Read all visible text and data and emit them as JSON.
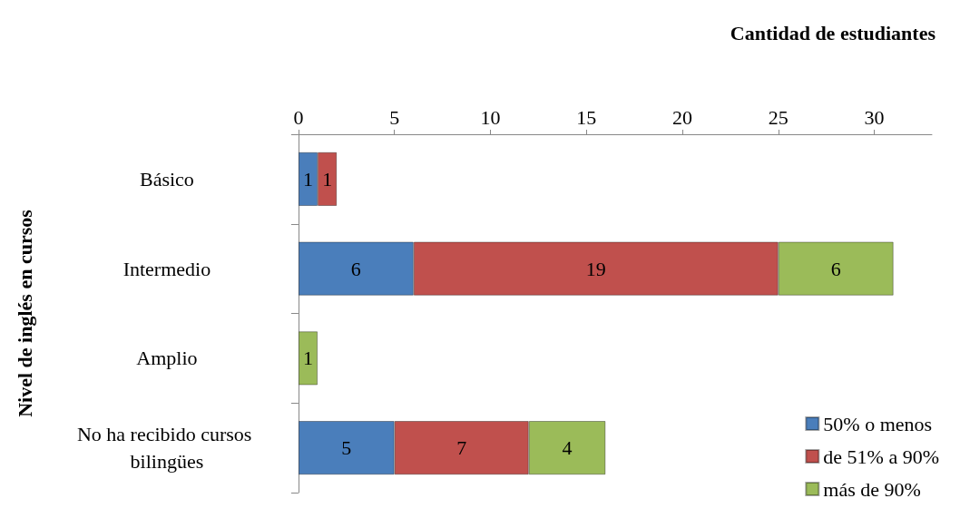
{
  "chart_data": {
    "type": "bar",
    "orientation": "horizontal",
    "stacked": true,
    "xlabel": "Cantidad de estudiantes",
    "ylabel": "Nivel de inglés en cursos",
    "categories": [
      "Básico",
      "Intermedio",
      "Amplio",
      "No ha recibido cursos bilingües"
    ],
    "series": [
      {
        "name": "50% o menos",
        "color": "#4a7ebb",
        "values": [
          1,
          6,
          null,
          5
        ]
      },
      {
        "name": "de 51% a 90%",
        "color": "#c0504d",
        "values": [
          1,
          19,
          null,
          7
        ]
      },
      {
        "name": "más de 90%",
        "color": "#9bbb59",
        "values": [
          null,
          6,
          1,
          4
        ]
      }
    ],
    "xlim": [
      0,
      33
    ],
    "xticks": [
      0,
      5,
      10,
      15,
      20,
      25,
      30
    ],
    "grid": false,
    "legend": "bottom right",
    "data_labels": true
  }
}
